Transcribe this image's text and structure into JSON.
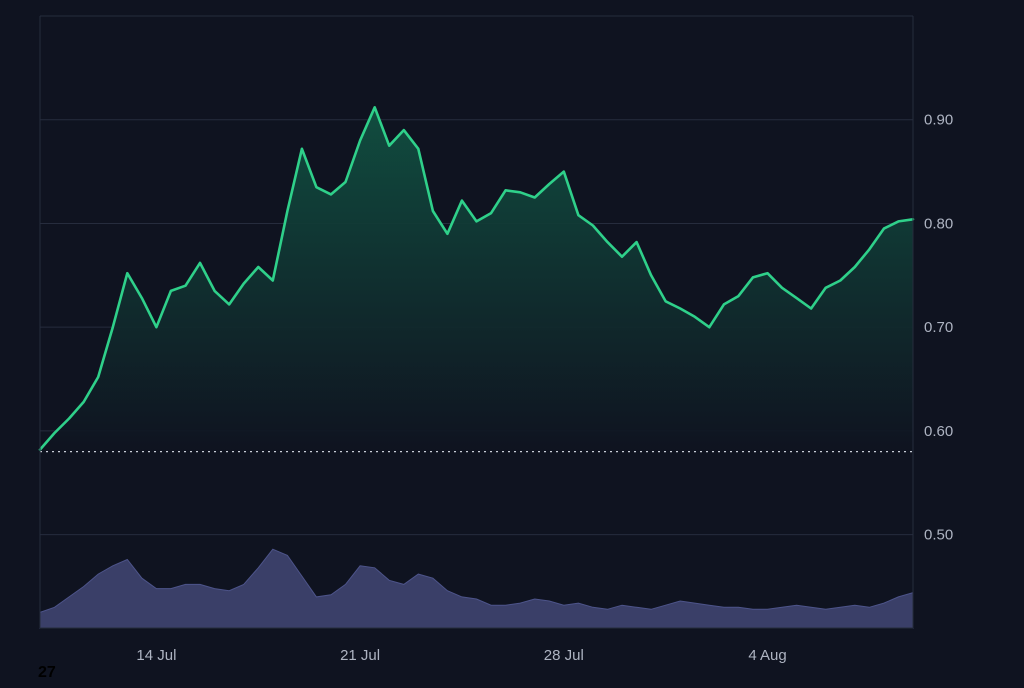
{
  "colors": {
    "background": "#0f1320",
    "grid": "#262c3d",
    "axis_text": "#aeb4c2",
    "price_line": "#2fd08a",
    "area_fill": "#0f3b2e",
    "baseline": "#c9ced8",
    "volume_fill": "#3a3f68",
    "volume_stroke": "#4d548a"
  },
  "corner_label": "27",
  "chart_data": {
    "type": "area",
    "title": "",
    "xlabel": "",
    "ylabel": "",
    "ylim": [
      0.41,
      1.0
    ],
    "yticks": [
      0.5,
      0.6,
      0.7,
      0.8,
      0.9
    ],
    "ytick_labels": [
      "0.50",
      "0.60",
      "0.70",
      "0.80",
      "0.90"
    ],
    "xlim": [
      "2025-07-10",
      "2025-08-09"
    ],
    "xticks": [
      "2025-07-14",
      "2025-07-21",
      "2025-07-28",
      "2025-08-04"
    ],
    "xtick_labels": [
      "14 Jul",
      "21 Jul",
      "28 Jul",
      "4 Aug"
    ],
    "baseline_value": 0.58,
    "grid": true,
    "axis_position": "right",
    "series": [
      {
        "kind": "price",
        "x": [
          "2025-07-10",
          "2025-07-10.5",
          "2025-07-11",
          "2025-07-11.5",
          "2025-07-12",
          "2025-07-12.5",
          "2025-07-13",
          "2025-07-13.5",
          "2025-07-14",
          "2025-07-14.5",
          "2025-07-15",
          "2025-07-15.5",
          "2025-07-16",
          "2025-07-16.5",
          "2025-07-17",
          "2025-07-17.5",
          "2025-07-18",
          "2025-07-18.5",
          "2025-07-19",
          "2025-07-19.5",
          "2025-07-20",
          "2025-07-20.5",
          "2025-07-21",
          "2025-07-21.5",
          "2025-07-22",
          "2025-07-22.5",
          "2025-07-23",
          "2025-07-23.5",
          "2025-07-24",
          "2025-07-24.5",
          "2025-07-25",
          "2025-07-25.5",
          "2025-07-26",
          "2025-07-26.5",
          "2025-07-27",
          "2025-07-27.5",
          "2025-07-28",
          "2025-07-28.5",
          "2025-07-29",
          "2025-07-29.5",
          "2025-07-30",
          "2025-07-30.5",
          "2025-07-31",
          "2025-07-31.5",
          "2025-08-01",
          "2025-08-01.5",
          "2025-08-02",
          "2025-08-02.5",
          "2025-08-03",
          "2025-08-03.5",
          "2025-08-04",
          "2025-08-04.5",
          "2025-08-05",
          "2025-08-05.5",
          "2025-08-06",
          "2025-08-06.5",
          "2025-08-07",
          "2025-08-07.5",
          "2025-08-08",
          "2025-08-08.5",
          "2025-08-09"
        ],
        "values": [
          0.582,
          0.598,
          0.612,
          0.628,
          0.652,
          0.7,
          0.752,
          0.728,
          0.7,
          0.735,
          0.74,
          0.762,
          0.735,
          0.722,
          0.742,
          0.758,
          0.745,
          0.812,
          0.872,
          0.835,
          0.828,
          0.84,
          0.88,
          0.912,
          0.875,
          0.89,
          0.872,
          0.812,
          0.79,
          0.822,
          0.802,
          0.81,
          0.832,
          0.83,
          0.825,
          0.838,
          0.85,
          0.808,
          0.798,
          0.782,
          0.768,
          0.782,
          0.75,
          0.725,
          0.718,
          0.71,
          0.7,
          0.722,
          0.73,
          0.748,
          0.752,
          0.738,
          0.728,
          0.718,
          0.738,
          0.745,
          0.758,
          0.775,
          0.795,
          0.802,
          0.804
        ],
        "volume": [
          0.425,
          0.43,
          0.44,
          0.45,
          0.462,
          0.47,
          0.476,
          0.458,
          0.448,
          0.448,
          0.452,
          0.452,
          0.448,
          0.446,
          0.452,
          0.468,
          0.486,
          0.48,
          0.46,
          0.44,
          0.442,
          0.452,
          0.47,
          0.468,
          0.456,
          0.452,
          0.462,
          0.458,
          0.446,
          0.44,
          0.438,
          0.432,
          0.432,
          0.434,
          0.438,
          0.436,
          0.432,
          0.434,
          0.43,
          0.428,
          0.432,
          0.43,
          0.428,
          0.432,
          0.436,
          0.434,
          0.432,
          0.43,
          0.43,
          0.428,
          0.428,
          0.43,
          0.432,
          0.43,
          0.428,
          0.43,
          0.432,
          0.43,
          0.434,
          0.44,
          0.444
        ]
      }
    ]
  }
}
